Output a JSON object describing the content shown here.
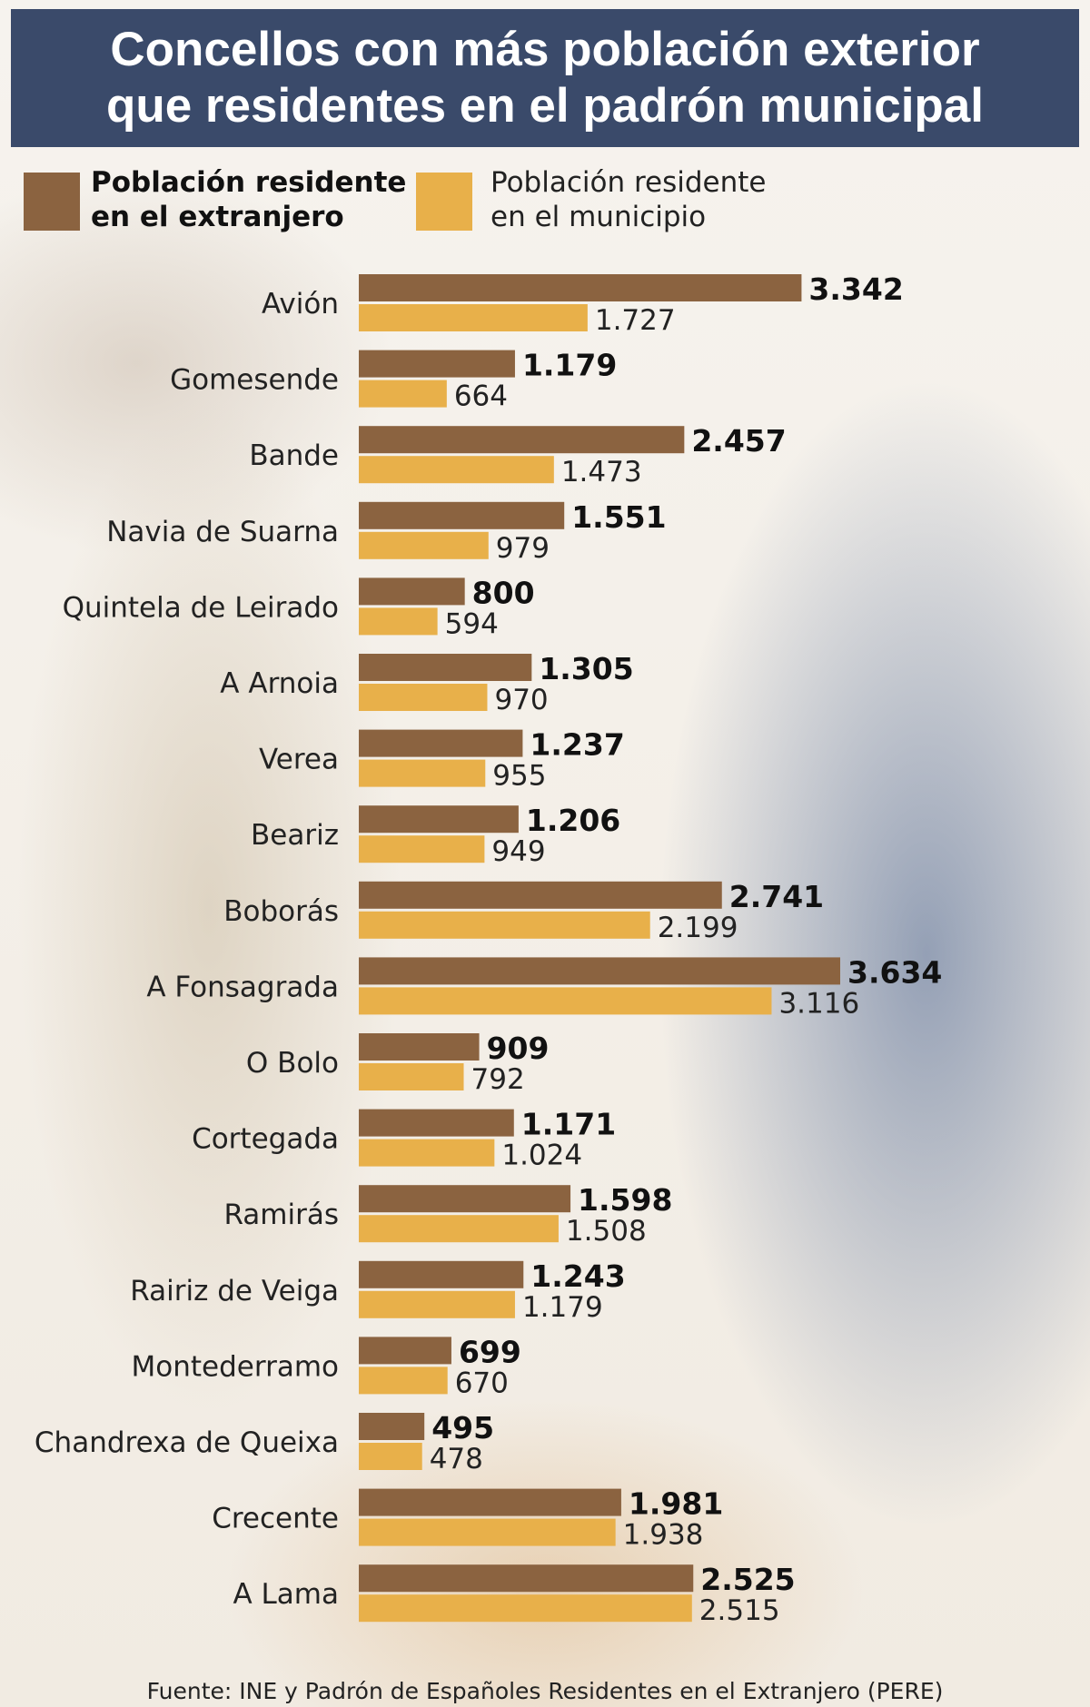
{
  "title_line1": "Concellos con más población exterior",
  "title_line2": "que residentes en el padrón municipal",
  "source": "Fuente: INE y Padrón de Españoles Residentes en el Extranjero (PERE)",
  "colors": {
    "exterior": "#8b6340",
    "residente": "#e8b04a",
    "title_bg": "#3a4a6a"
  },
  "chart_data": {
    "type": "bar",
    "orientation": "horizontal",
    "title": "Concellos con más población exterior que residentes en el padrón municipal",
    "legend_position": "top",
    "grid": false,
    "xlim": [
      0,
      3634
    ],
    "categories": [
      "Avión",
      "Gomesende",
      "Bande",
      "Navia de Suarna",
      "Quintela de Leirado",
      "A Arnoia",
      "Verea",
      "Beariz",
      "Boborás",
      "A Fonsagrada",
      "O Bolo",
      "Cortegada",
      "Ramirás",
      "Rairiz de Veiga",
      "Montederramo",
      "Chandrexa de Queixa",
      "Crecente",
      "A Lama"
    ],
    "series": [
      {
        "name_line1": "Población residente",
        "name_line2": "en el extranjero",
        "values": [
          3342,
          1179,
          2457,
          1551,
          800,
          1305,
          1237,
          1206,
          2741,
          3634,
          909,
          1171,
          1598,
          1243,
          699,
          495,
          1981,
          2525
        ],
        "labels": [
          "3.342",
          "1.179",
          "2.457",
          "1.551",
          "800",
          "1.305",
          "1.237",
          "1.206",
          "2.741",
          "3.634",
          "909",
          "1.171",
          "1.598",
          "1.243",
          "699",
          "495",
          "1.981",
          "2.525"
        ]
      },
      {
        "name_line1": "Población residente",
        "name_line2": "en el municipio",
        "values": [
          1727,
          664,
          1473,
          979,
          594,
          970,
          955,
          949,
          2199,
          3116,
          792,
          1024,
          1508,
          1179,
          670,
          478,
          1938,
          2515
        ],
        "labels": [
          "1.727",
          "664",
          "1.473",
          "979",
          "594",
          "970",
          "955",
          "949",
          "2.199",
          "3.116",
          "792",
          "1.024",
          "1.508",
          "1.179",
          "670",
          "478",
          "1.938",
          "2.515"
        ]
      }
    ]
  }
}
